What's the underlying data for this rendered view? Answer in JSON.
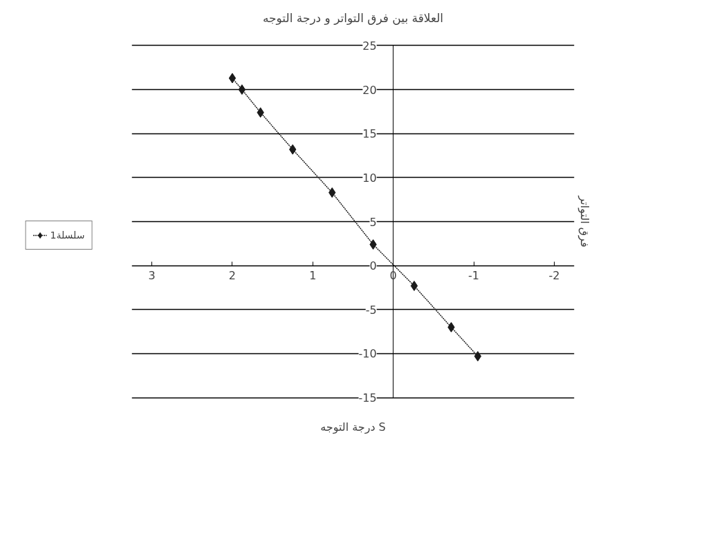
{
  "chart_data": {
    "type": "line",
    "title": "العلاقة بين فرق التواتر و درجة التوجه",
    "xlabel": "درجة التوجه S",
    "ylabel": "فرق التواتر",
    "x": [
      2.0,
      1.88,
      1.65,
      1.25,
      0.76,
      0.25,
      -0.26,
      -0.72,
      -1.05
    ],
    "series": [
      {
        "name": "سلسلة1",
        "color": "#1a1a1a",
        "values": [
          21.3,
          20,
          17.4,
          13.2,
          8.3,
          2.4,
          -2.3,
          -7,
          -10.3
        ]
      }
    ],
    "xlim": [
      3,
      -2
    ],
    "xticks": [
      3,
      2,
      1,
      0,
      -1,
      -2
    ],
    "ylim": [
      -15,
      25
    ],
    "yticks": [
      -15,
      -10,
      -5,
      0,
      5,
      10,
      15,
      20,
      25
    ],
    "grid": "y",
    "legend": "left",
    "marker": "diamond",
    "line_style": "dotted"
  }
}
